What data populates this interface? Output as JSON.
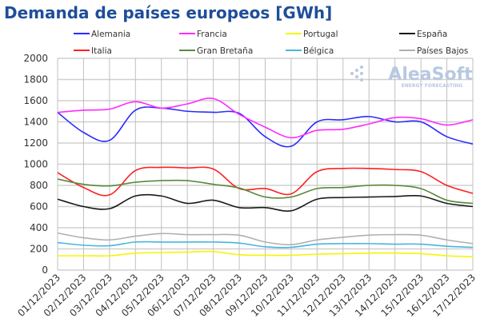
{
  "chart_data": {
    "type": "line",
    "title": "Demanda de países europeos [GWh]",
    "xlabel": "",
    "ylabel": "",
    "ylim": [
      0,
      2000
    ],
    "yticks": [
      0,
      200,
      400,
      600,
      800,
      1000,
      1200,
      1400,
      1600,
      1800,
      2000
    ],
    "grid": true,
    "legend_placement": "top",
    "categories": [
      "01/12/2023",
      "02/12/2023",
      "03/12/2023",
      "04/12/2023",
      "05/12/2023",
      "06/12/2023",
      "07/12/2023",
      "08/12/2023",
      "09/12/2023",
      "10/12/2023",
      "11/12/2023",
      "12/12/2023",
      "13/12/2023",
      "14/12/2023",
      "15/12/2023",
      "16/12/2023",
      "17/12/2023"
    ],
    "series": [
      {
        "name": "Alemania",
        "color": "#2a2aff",
        "values": [
          1490,
          1300,
          1225,
          1510,
          1530,
          1500,
          1490,
          1480,
          1260,
          1170,
          1400,
          1420,
          1450,
          1400,
          1400,
          1260,
          1190
        ]
      },
      {
        "name": "Francia",
        "color": "#ff2aff",
        "values": [
          1490,
          1510,
          1520,
          1590,
          1530,
          1570,
          1620,
          1470,
          1350,
          1250,
          1320,
          1330,
          1380,
          1440,
          1430,
          1370,
          1420
        ]
      },
      {
        "name": "Portugal",
        "color": "#f5f500",
        "values": [
          135,
          135,
          135,
          160,
          165,
          170,
          175,
          145,
          140,
          140,
          150,
          155,
          160,
          160,
          155,
          135,
          125
        ]
      },
      {
        "name": "España",
        "color": "#1a1a1a",
        "values": [
          670,
          600,
          580,
          700,
          700,
          630,
          660,
          590,
          590,
          560,
          670,
          685,
          690,
          695,
          700,
          630,
          600
        ]
      },
      {
        "name": "Italia",
        "color": "#ff2020",
        "values": [
          920,
          780,
          710,
          940,
          970,
          965,
          955,
          770,
          770,
          720,
          930,
          960,
          960,
          950,
          930,
          800,
          725
        ]
      },
      {
        "name": "Gran Bretaña",
        "color": "#5a8a3a",
        "values": [
          860,
          810,
          795,
          830,
          845,
          845,
          810,
          775,
          690,
          690,
          770,
          780,
          800,
          800,
          770,
          660,
          630
        ]
      },
      {
        "name": "Bélgica",
        "color": "#4ab4dc",
        "values": [
          260,
          235,
          230,
          265,
          265,
          265,
          265,
          255,
          220,
          215,
          245,
          250,
          250,
          245,
          245,
          225,
          215
        ]
      },
      {
        "name": "Países Bajos",
        "color": "#b0b0b0",
        "values": [
          350,
          305,
          285,
          320,
          345,
          335,
          335,
          330,
          265,
          240,
          285,
          310,
          330,
          335,
          330,
          285,
          250
        ]
      }
    ]
  },
  "watermark": {
    "brand": "AleaSoft",
    "tagline": "ENERGY FORECASTING"
  }
}
